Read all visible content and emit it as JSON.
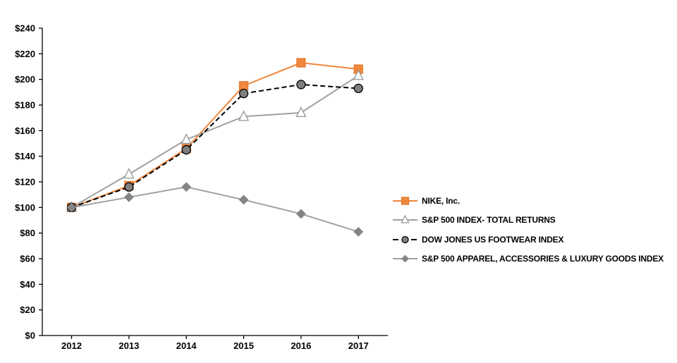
{
  "chart_data": {
    "type": "line",
    "title": "",
    "categories": [
      "2012",
      "2013",
      "2014",
      "2015",
      "2016",
      "2017"
    ],
    "y_axis": {
      "min": 0,
      "max": 240,
      "step": 20,
      "tick_prefix": "$",
      "tick_labels": [
        "$0",
        "$20",
        "$40",
        "$60",
        "$80",
        "$100",
        "$120",
        "$140",
        "$160",
        "$180",
        "$200",
        "$220",
        "$240"
      ]
    },
    "grid": "off",
    "legend_position": "right",
    "colors": {
      "nike_orange": "#F0873C",
      "line_gray": "#A0A0A0",
      "marker_gray": "#7F7F7F",
      "axis_black": "#000000"
    },
    "series": [
      {
        "name": "NIKE, Inc.",
        "values": [
          100,
          117,
          146,
          195,
          213,
          208
        ],
        "color": "#F0873C",
        "line_style": "solid",
        "marker": "square",
        "marker_fill": "#F0873C",
        "marker_stroke": "#E07B30"
      },
      {
        "name": "S&P 500 INDEX- TOTAL RETURNS",
        "values": [
          100,
          126,
          153,
          171,
          174,
          203
        ],
        "color": "#A0A0A0",
        "line_style": "solid",
        "marker": "triangle",
        "marker_fill": "#FFFFFF",
        "marker_stroke": "#979797"
      },
      {
        "name": "DOW JONES US FOOTWEAR INDEX",
        "values": [
          100,
          116,
          145,
          189,
          196,
          193
        ],
        "color": "#000000",
        "line_style": "dashed",
        "marker": "circle",
        "marker_fill": "#7F7F7F",
        "marker_stroke": "#000000"
      },
      {
        "name": "S&P 500 APPAREL, ACCESSORIES & LUXURY GOODS INDEX",
        "values": [
          100,
          108,
          116,
          106,
          95,
          81
        ],
        "color": "#A0A0A0",
        "line_style": "solid",
        "marker": "diamond",
        "marker_fill": "#848484",
        "marker_stroke": "#848484"
      }
    ]
  }
}
